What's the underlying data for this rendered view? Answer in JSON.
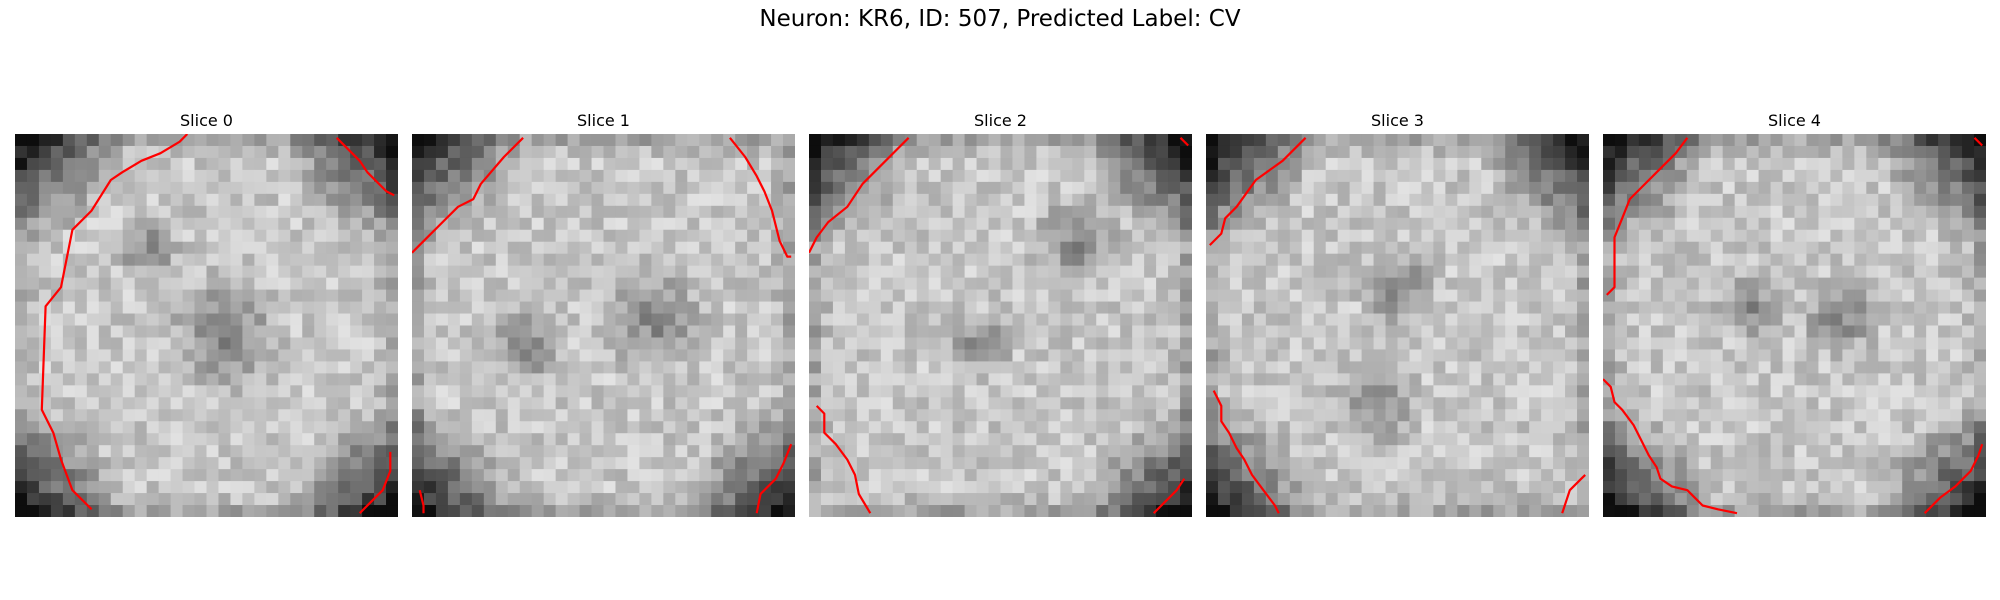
{
  "figure": {
    "title": "Neuron: KR6, ID: 507, Predicted Label: CV"
  },
  "panels": [
    {
      "title": "Slice 0",
      "seed": 11,
      "dark_corners": [
        "tl",
        "bl",
        "br",
        "tr"
      ],
      "blobs": [
        [
          0.55,
          0.52,
          0.09
        ],
        [
          0.35,
          0.3,
          0.05
        ]
      ],
      "contours": [
        [
          [
            0.45,
            0.0
          ],
          [
            0.43,
            0.02
          ],
          [
            0.38,
            0.05
          ],
          [
            0.33,
            0.07
          ],
          [
            0.28,
            0.1
          ],
          [
            0.25,
            0.12
          ],
          [
            0.2,
            0.2
          ],
          [
            0.15,
            0.25
          ],
          [
            0.12,
            0.4
          ],
          [
            0.08,
            0.45
          ],
          [
            0.07,
            0.72
          ],
          [
            0.1,
            0.78
          ],
          [
            0.12,
            0.85
          ],
          [
            0.15,
            0.93
          ],
          [
            0.2,
            0.98
          ]
        ],
        [
          [
            0.84,
            0.01
          ],
          [
            0.87,
            0.04
          ],
          [
            0.9,
            0.07
          ],
          [
            0.92,
            0.1
          ],
          [
            0.97,
            0.15
          ],
          [
            0.99,
            0.16
          ]
        ],
        [
          [
            0.9,
            0.99
          ],
          [
            0.93,
            0.96
          ],
          [
            0.96,
            0.93
          ],
          [
            0.98,
            0.88
          ],
          [
            0.98,
            0.83
          ]
        ]
      ]
    },
    {
      "title": "Slice 1",
      "seed": 23,
      "dark_corners": [
        "tl",
        "bl",
        "br"
      ],
      "blobs": [
        [
          0.63,
          0.48,
          0.08
        ],
        [
          0.3,
          0.55,
          0.06
        ]
      ],
      "contours": [
        [
          [
            0.29,
            0.01
          ],
          [
            0.24,
            0.06
          ],
          [
            0.18,
            0.13
          ],
          [
            0.16,
            0.17
          ],
          [
            0.12,
            0.19
          ],
          [
            0.08,
            0.23
          ],
          [
            0.03,
            0.28
          ],
          [
            0.0,
            0.31
          ]
        ],
        [
          [
            0.83,
            0.01
          ],
          [
            0.87,
            0.06
          ],
          [
            0.9,
            0.11
          ],
          [
            0.92,
            0.15
          ],
          [
            0.94,
            0.2
          ],
          [
            0.96,
            0.28
          ],
          [
            0.98,
            0.32
          ],
          [
            0.99,
            0.32
          ]
        ],
        [
          [
            0.02,
            0.93
          ],
          [
            0.03,
            0.97
          ],
          [
            0.03,
            0.99
          ]
        ],
        [
          [
            0.9,
            0.99
          ],
          [
            0.91,
            0.94
          ],
          [
            0.95,
            0.9
          ],
          [
            0.97,
            0.86
          ],
          [
            0.99,
            0.81
          ]
        ]
      ]
    },
    {
      "title": "Slice 2",
      "seed": 37,
      "dark_corners": [
        "tl",
        "tr",
        "br"
      ],
      "blobs": [
        [
          0.7,
          0.28,
          0.07
        ],
        [
          0.45,
          0.55,
          0.05
        ]
      ],
      "contours": [
        [
          [
            0.26,
            0.01
          ],
          [
            0.2,
            0.07
          ],
          [
            0.14,
            0.13
          ],
          [
            0.1,
            0.19
          ],
          [
            0.05,
            0.23
          ],
          [
            0.02,
            0.27
          ],
          [
            0.0,
            0.31
          ]
        ],
        [
          [
            0.97,
            0.01
          ],
          [
            0.99,
            0.03
          ]
        ],
        [
          [
            0.02,
            0.71
          ],
          [
            0.04,
            0.73
          ],
          [
            0.04,
            0.78
          ],
          [
            0.07,
            0.81
          ],
          [
            0.1,
            0.85
          ],
          [
            0.12,
            0.89
          ],
          [
            0.13,
            0.94
          ],
          [
            0.16,
            0.99
          ]
        ],
        [
          [
            0.9,
            0.99
          ],
          [
            0.93,
            0.96
          ],
          [
            0.96,
            0.93
          ],
          [
            0.98,
            0.9
          ]
        ]
      ]
    },
    {
      "title": "Slice 3",
      "seed": 51,
      "dark_corners": [
        "tl",
        "tr",
        "bl"
      ],
      "blobs": [
        [
          0.45,
          0.7,
          0.07
        ],
        [
          0.5,
          0.4,
          0.06
        ]
      ],
      "contours": [
        [
          [
            0.26,
            0.01
          ],
          [
            0.2,
            0.07
          ],
          [
            0.13,
            0.12
          ],
          [
            0.08,
            0.19
          ],
          [
            0.05,
            0.22
          ],
          [
            0.04,
            0.26
          ],
          [
            0.01,
            0.29
          ]
        ],
        [
          [
            0.02,
            0.67
          ],
          [
            0.04,
            0.71
          ],
          [
            0.04,
            0.75
          ],
          [
            0.06,
            0.78
          ],
          [
            0.08,
            0.82
          ],
          [
            0.1,
            0.85
          ],
          [
            0.12,
            0.89
          ],
          [
            0.15,
            0.93
          ],
          [
            0.18,
            0.97
          ],
          [
            0.19,
            0.99
          ]
        ],
        [
          [
            0.93,
            0.99
          ],
          [
            0.94,
            0.96
          ],
          [
            0.95,
            0.93
          ],
          [
            0.98,
            0.9
          ],
          [
            0.99,
            0.89
          ]
        ]
      ]
    },
    {
      "title": "Slice 4",
      "seed": 67,
      "dark_corners": [
        "tl",
        "bl",
        "br",
        "tr"
      ],
      "blobs": [
        [
          0.62,
          0.48,
          0.06
        ],
        [
          0.38,
          0.45,
          0.05
        ]
      ],
      "contours": [
        [
          [
            0.22,
            0.01
          ],
          [
            0.19,
            0.05
          ],
          [
            0.14,
            0.1
          ],
          [
            0.1,
            0.14
          ],
          [
            0.07,
            0.17
          ],
          [
            0.05,
            0.22
          ],
          [
            0.03,
            0.27
          ],
          [
            0.03,
            0.4
          ],
          [
            0.01,
            0.42
          ]
        ],
        [
          [
            0.97,
            0.01
          ],
          [
            0.99,
            0.03
          ]
        ],
        [
          [
            0.0,
            0.64
          ],
          [
            0.02,
            0.66
          ],
          [
            0.03,
            0.7
          ],
          [
            0.05,
            0.72
          ],
          [
            0.08,
            0.76
          ],
          [
            0.1,
            0.8
          ],
          [
            0.12,
            0.84
          ],
          [
            0.14,
            0.87
          ],
          [
            0.15,
            0.9
          ],
          [
            0.18,
            0.92
          ],
          [
            0.22,
            0.93
          ],
          [
            0.24,
            0.95
          ],
          [
            0.26,
            0.97
          ],
          [
            0.3,
            0.98
          ],
          [
            0.35,
            0.99
          ]
        ],
        [
          [
            0.84,
            0.99
          ],
          [
            0.88,
            0.95
          ],
          [
            0.92,
            0.92
          ],
          [
            0.94,
            0.9
          ],
          [
            0.96,
            0.88
          ],
          [
            0.98,
            0.84
          ],
          [
            0.99,
            0.81
          ]
        ]
      ]
    }
  ],
  "colors": {
    "contour": "#ff0000"
  }
}
